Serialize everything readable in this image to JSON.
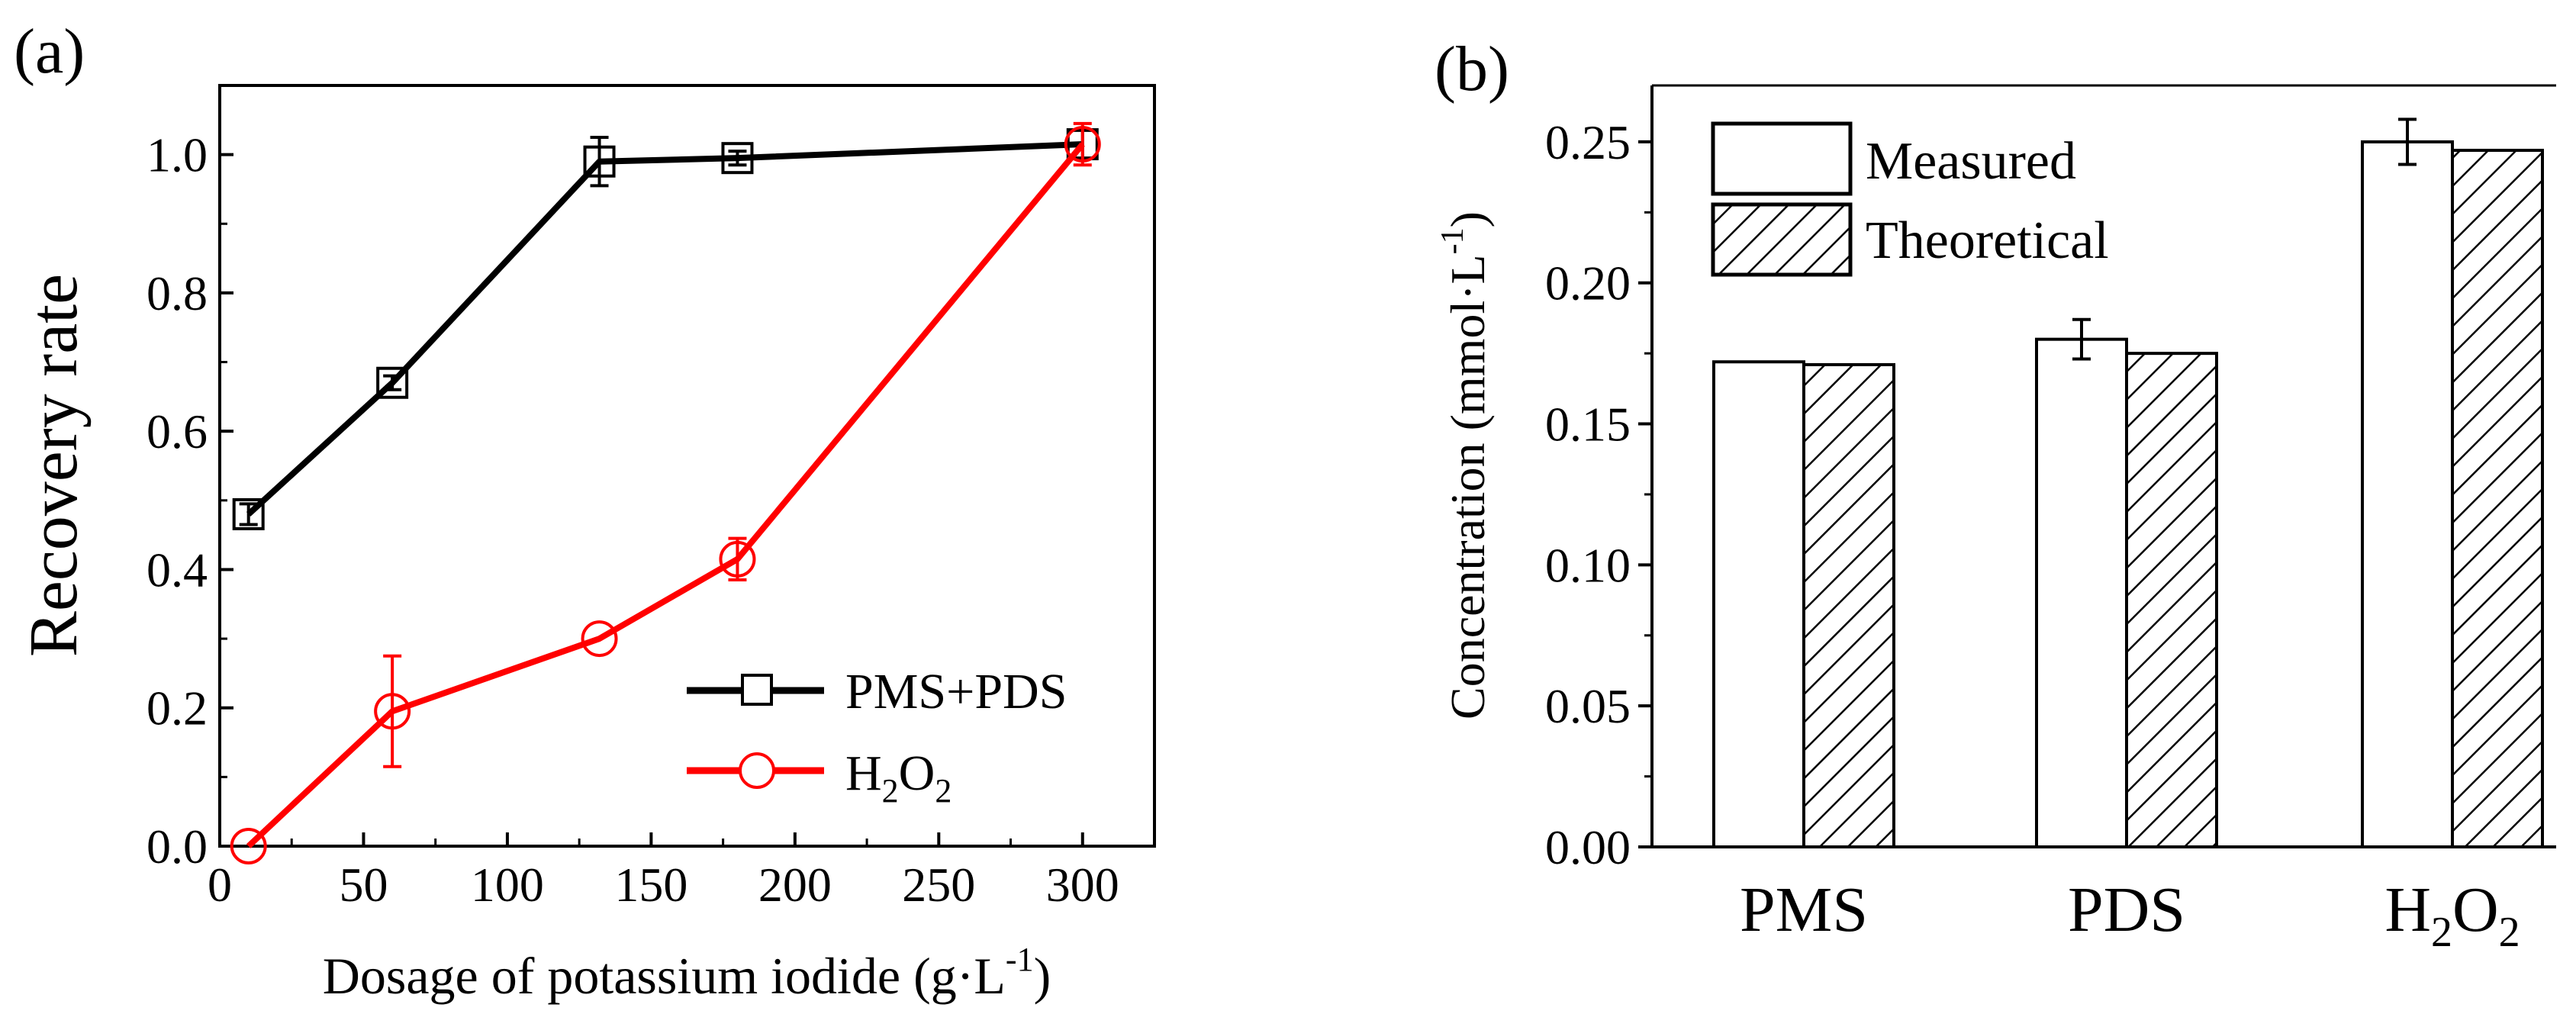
{
  "chart_data": [
    {
      "panel_label": "(a)",
      "type": "line",
      "xlabel": "Dosage of potassium iodide (g·L",
      "xlabel_sup": "-1",
      "xlabel_close": ")",
      "ylabel": "Recovery rate",
      "xlim": [
        0,
        325
      ],
      "ylim": [
        0,
        1.1
      ],
      "x_ticks": [
        0,
        50,
        100,
        150,
        200,
        250,
        300
      ],
      "y_ticks": [
        "0.0",
        "0.2",
        "0.4",
        "0.6",
        "0.8",
        "1.0"
      ],
      "legend_position": "bottom-right",
      "series": [
        {
          "name": "PMS+PDS",
          "color": "#000000",
          "marker": "square",
          "points": [
            {
              "x": 10,
              "y": 0.48,
              "err": 0.015
            },
            {
              "x": 60,
              "y": 0.67,
              "err": 0.01
            },
            {
              "x": 132,
              "y": 0.99,
              "err": 0.035
            },
            {
              "x": 180,
              "y": 0.995,
              "err": 0.01
            },
            {
              "x": 300,
              "y": 1.015,
              "err": 0.02
            }
          ]
        },
        {
          "name_base": "H",
          "name_sub1": "2",
          "name_mid": "O",
          "name_sub2": "2",
          "color": "#ff0000",
          "marker": "circle",
          "points": [
            {
              "x": 10,
              "y": 0.0,
              "err": 0.0
            },
            {
              "x": 60,
              "y": 0.195,
              "err": 0.08
            },
            {
              "x": 132,
              "y": 0.3,
              "err": 0.0
            },
            {
              "x": 180,
              "y": 0.415,
              "err": 0.03
            },
            {
              "x": 300,
              "y": 1.015,
              "err": 0.03
            }
          ]
        }
      ]
    },
    {
      "panel_label": "(b)",
      "type": "bar",
      "ylabel": "Concentration (mmol·L",
      "ylabel_sup": "-1",
      "ylabel_close": ")",
      "ylim": [
        0,
        0.27
      ],
      "y_ticks": [
        "0.00",
        "0.05",
        "0.10",
        "0.15",
        "0.20",
        "0.25"
      ],
      "categories": [
        {
          "base": "PMS",
          "sub1": "",
          "mid": "",
          "sub2": ""
        },
        {
          "base": "PDS",
          "sub1": "",
          "mid": "",
          "sub2": ""
        },
        {
          "base": "H",
          "sub1": "2",
          "mid": "O",
          "sub2": "2"
        }
      ],
      "legend_position": "top-left",
      "series": [
        {
          "name": "Measured",
          "fill": "open",
          "values": [
            0.172,
            0.18,
            0.25
          ],
          "errors": [
            0.0,
            0.007,
            0.008
          ]
        },
        {
          "name": "Theoretical",
          "fill": "hatched",
          "values": [
            0.171,
            0.175,
            0.247
          ],
          "errors": [
            0,
            0,
            0
          ]
        }
      ]
    }
  ]
}
